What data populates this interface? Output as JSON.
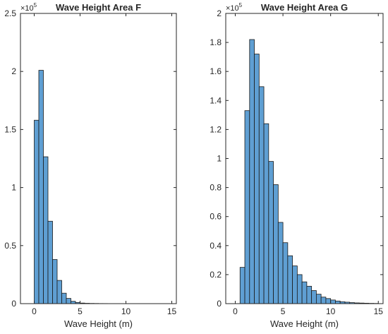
{
  "chart_data": [
    {
      "type": "bar",
      "title": "Wave Height Area F",
      "xlabel": "Wave Height (m)",
      "ylabel": "",
      "xlim": [
        -1.5,
        15.5
      ],
      "ylim": [
        0,
        250000
      ],
      "xticks": [
        "0",
        "5",
        "10",
        "15"
      ],
      "yticks": [
        "0",
        "0.5",
        "1",
        "1.5",
        "2",
        "2.5"
      ],
      "y_exponent": {
        "base": "×10",
        "power": "5"
      },
      "bin_width": 0.5,
      "bin_start": 0,
      "values": [
        158000,
        201000,
        126500,
        71000,
        38000,
        20000,
        9000,
        4500,
        2000,
        1000,
        500,
        300,
        200,
        150,
        100,
        80,
        50,
        30,
        20,
        10
      ]
    },
    {
      "type": "bar",
      "title": "Wave Height Area G",
      "xlabel": "Wave Height (m)",
      "ylabel": "",
      "xlim": [
        -1,
        15.5
      ],
      "ylim": [
        0,
        200000
      ],
      "xticks": [
        "0",
        "5",
        "10",
        "15"
      ],
      "yticks": [
        "0",
        "0.2",
        "0.4",
        "0.6",
        "0.8",
        "1",
        "1.2",
        "1.4",
        "1.6",
        "1.8",
        "2"
      ],
      "y_exponent": {
        "base": "×10",
        "power": "5"
      },
      "bin_width": 0.5,
      "bin_start": 0.5,
      "values": [
        25000,
        133000,
        182000,
        172000,
        149500,
        124000,
        98000,
        82000,
        56000,
        42000,
        33000,
        26000,
        20000,
        15000,
        12000,
        9000,
        6500,
        4500,
        3500,
        2500,
        1800,
        1300,
        1000,
        700,
        500,
        400,
        300,
        200,
        150
      ]
    }
  ]
}
